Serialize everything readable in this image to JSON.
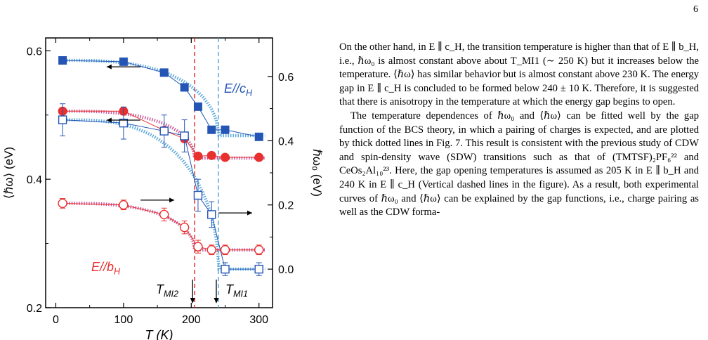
{
  "page_number": "6",
  "figure": {
    "left_axis_label": "⟨ℏω⟩ (eV)",
    "right_axis_label": "ℏω₀ (eV)",
    "x_axis_label": "T (K)",
    "left_ticks": [
      "0.2",
      "0.4",
      "0.6"
    ],
    "right_ticks": [
      "0.0",
      "0.2",
      "0.4",
      "0.6"
    ],
    "x_ticks": [
      "0",
      "100",
      "200",
      "300"
    ],
    "label_c": "E//c",
    "label_c_sub": "H",
    "label_b": "E//b",
    "label_b_sub": "H",
    "mi2_label": "T",
    "mi2_sub": "MI2",
    "mi1_label": "T",
    "mi1_sub": "MI1",
    "colors": {
      "blue": "#2455b5",
      "red": "#e8302f",
      "dotted_blue": "#5aa7d9",
      "dotted_red": "#c95a9c"
    }
  },
  "chart_data": {
    "type": "scatter",
    "xlim": [
      -15,
      320
    ],
    "ylim_left": [
      0.2,
      0.62
    ],
    "ylim_right": [
      -0.12,
      0.72
    ],
    "x_ticks": [
      0,
      100,
      200,
      300
    ],
    "left_ticks": [
      0.2,
      0.4,
      0.6
    ],
    "right_ticks": [
      0.0,
      0.2,
      0.4,
      0.6
    ],
    "vlines": [
      {
        "x": 205,
        "color": "red",
        "style": "dashed"
      },
      {
        "x": 240,
        "color": "blue",
        "style": "dashed"
      }
    ],
    "series": [
      {
        "key": "c_mean",
        "axis": "left",
        "color": "blue",
        "marker": "filled-square",
        "x": [
          10,
          100,
          160,
          190,
          210,
          230,
          250,
          300
        ],
        "y": [
          0.585,
          0.583,
          0.566,
          0.543,
          0.513,
          0.477,
          0.477,
          0.466
        ]
      },
      {
        "key": "b_mean",
        "axis": "left",
        "color": "red",
        "marker": "filled-circle",
        "x": [
          10,
          100,
          160,
          190,
          210,
          230,
          250,
          300
        ],
        "y": [
          0.506,
          0.506,
          0.476,
          0.463,
          0.436,
          0.437,
          0.434,
          0.434
        ]
      },
      {
        "key": "c_w0",
        "axis": "right",
        "color": "blue",
        "marker": "open-square",
        "x": [
          10,
          100,
          160,
          190,
          210,
          230,
          250,
          300
        ],
        "y": [
          0.465,
          0.455,
          0.43,
          0.415,
          0.23,
          0.17,
          0.0,
          0.0
        ],
        "err": [
          0.05,
          0.05,
          0.05,
          0.05,
          0.05,
          0.04,
          0.02,
          0.02
        ]
      },
      {
        "key": "b_w0",
        "axis": "right",
        "color": "red",
        "marker": "open-circle",
        "x": [
          10,
          100,
          160,
          190,
          210,
          230,
          250,
          300
        ],
        "y": [
          0.205,
          0.2,
          0.17,
          0.13,
          0.07,
          0.06,
          0.06,
          0.06
        ],
        "err": [
          0.015,
          0.015,
          0.02,
          0.02,
          0.02,
          0.015,
          0.015,
          0.015
        ]
      }
    ],
    "fits": [
      {
        "axis": "left",
        "color": "dotted_blue",
        "tc": 240,
        "base": 0.468,
        "amp": 0.117
      },
      {
        "axis": "left",
        "color": "dotted_red",
        "tc": 205,
        "base": 0.433,
        "amp": 0.073
      },
      {
        "axis": "right",
        "color": "dotted_blue",
        "tc": 240,
        "base": 0.0,
        "amp": 0.465
      },
      {
        "axis": "right",
        "color": "dotted_red",
        "tc": 205,
        "base": 0.06,
        "amp": 0.145
      }
    ],
    "arrows": [
      {
        "x": 100,
        "axis": "left",
        "y": 0.575,
        "dir": "left"
      },
      {
        "x": 100,
        "axis": "left",
        "y": 0.492,
        "dir": "left"
      },
      {
        "x": 150,
        "axis": "right",
        "y": 0.215,
        "dir": "right"
      },
      {
        "x": 265,
        "axis": "right",
        "y": 0.175,
        "dir": "right"
      }
    ]
  },
  "text": {
    "p1": "On the other hand, in E ∥ c_H, the transition temperature is higher than that of E ∥ b_H, i.e., ℏω₀ is almost constant above about T_MI1 (∼ 250 K) but it increases below the temperature. ⟨ℏω⟩ has similar behavior but is almost constant above 230 K. The energy gap in E ∥ c_H is concluded to be formed below 240 ± 10 K. Therefore, it is suggested that there is anisotropy in the temperature at which the energy gap begins to open.",
    "p2": "The temperature dependences of ℏω₀ and ⟨ℏω⟩ can be fitted well by the gap function of the BCS theory, in which a pairing of charges is expected, and are plotted by thick dotted lines in Fig. 7. This result is consistent with the previous study of CDW and spin-density wave (SDW) transitions such as that of (TMTSF)₂PF₆²² and CeOs₂Al₁₀²³. Here, the gap opening temperatures is assumed as 205 K in E ∥ b_H and 240 K in E ∥ c_H (Vertical dashed lines in the figure). As a result, both experimental curves of ℏω₀ and ⟨ℏω⟩ can be explained by the gap functions, i.e., charge pairing as well as the CDW forma-"
  }
}
